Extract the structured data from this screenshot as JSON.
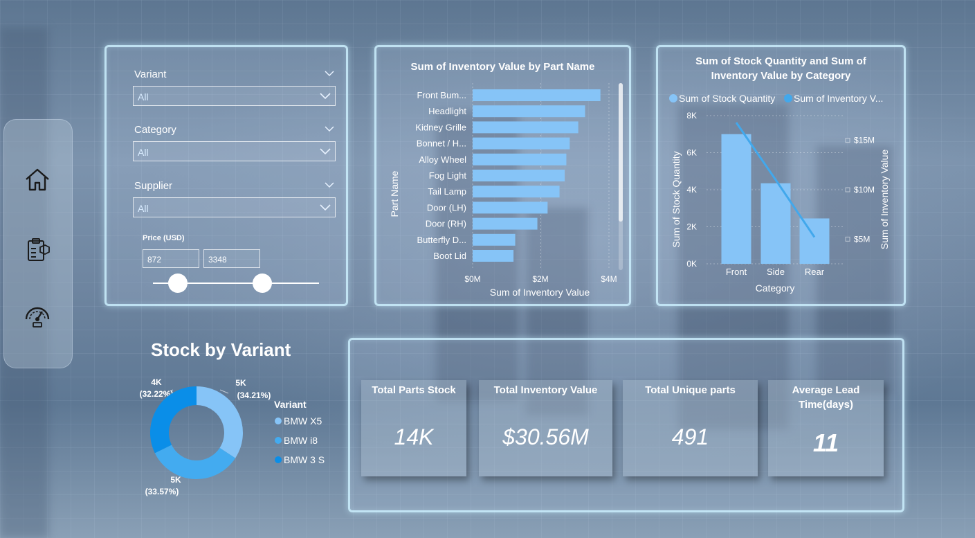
{
  "nav": {
    "items": [
      {
        "icon": "home-icon"
      },
      {
        "icon": "inventory-clipboard-icon"
      },
      {
        "icon": "gauge-dashboard-icon"
      }
    ]
  },
  "filters": {
    "variant": {
      "label": "Variant",
      "value": "All"
    },
    "category": {
      "label": "Category",
      "value": "All"
    },
    "supplier": {
      "label": "Supplier",
      "value": "All"
    },
    "price": {
      "label": "Price (USD)",
      "min": "872",
      "max": "3348",
      "min_fraction": 0.15,
      "max_fraction": 0.66
    }
  },
  "bar_chart": {
    "title": "Sum of Inventory Value by Part Name",
    "xlabel": "Sum of Inventory Value",
    "ylabel": "Part Name",
    "ticks": [
      "$0M",
      "$2M",
      "$4M"
    ]
  },
  "combo_chart": {
    "title_line1": "Sum of Stock Quantity and Sum of",
    "title_line2": "Inventory Value by Category",
    "legend": [
      "Sum of Stock Quantity",
      "Sum of Inventory V..."
    ],
    "xlabel": "Category",
    "ylabel_left": "Sum of Stock Quantity",
    "ylabel_right": "Sum of Inventory Value",
    "left_ticks": [
      "0K",
      "2K",
      "4K",
      "6K",
      "8K"
    ],
    "right_ticks": [
      "$5M",
      "$10M",
      "$15M"
    ]
  },
  "donut": {
    "title": "Stock by Variant",
    "legend_title": "Variant",
    "legend": [
      "BMW X5",
      "BMW i8",
      "BMW 3 S..."
    ],
    "labels": [
      {
        "line1": "5K",
        "line2": "(34.21%)"
      },
      {
        "line1": "5K",
        "line2": "(33.57%)"
      },
      {
        "line1": "4K",
        "line2": "(32.22%)"
      }
    ]
  },
  "kpis": [
    {
      "title": "Total Parts Stock",
      "value": "14K"
    },
    {
      "title": "Total Inventory Value",
      "value": "$30.56M"
    },
    {
      "title": "Total Unique parts",
      "value": "491"
    },
    {
      "title_line1": "Average Lead",
      "title_line2": "Time(days)",
      "value": "11"
    }
  ],
  "colors": {
    "bar": "#86c4f7",
    "line": "#42a8ec",
    "donut1": "#86c4f7",
    "donut2": "#43abf0",
    "donut3": "#0a8ee8",
    "border": "#cdf0ff"
  },
  "chart_data": [
    {
      "type": "bar",
      "orientation": "horizontal",
      "title": "Sum of Inventory Value by Part Name",
      "xlabel": "Sum of Inventory Value",
      "ylabel": "Part Name",
      "categories": [
        "Front Bum...",
        "Headlight",
        "Kidney Grille",
        "Bonnet / H...",
        "Alloy Wheel",
        "Fog Light",
        "Tail Lamp",
        "Door (LH)",
        "Door (RH)",
        "Butterfly D...",
        "Boot Lid"
      ],
      "values": [
        3.75,
        3.3,
        3.1,
        2.85,
        2.75,
        2.7,
        2.55,
        2.2,
        1.9,
        1.25,
        1.2
      ],
      "xlim": [
        0,
        4
      ]
    },
    {
      "type": "bar",
      "title": "Sum of Stock Quantity and Sum of Inventory Value by Category",
      "xlabel": "Category",
      "categories": [
        "Front",
        "Side",
        "Rear"
      ],
      "series": [
        {
          "name": "Sum of Stock Quantity",
          "type": "bar",
          "axis": "left",
          "values": [
            7000,
            4350,
            2450
          ]
        },
        {
          "name": "Sum of Inventory V...",
          "type": "line",
          "axis": "right",
          "values": [
            16.8,
            11.0,
            5.2
          ]
        }
      ],
      "ylim_left": [
        0,
        8000
      ],
      "ylim_right": [
        2.5,
        17.5
      ]
    },
    {
      "type": "pie",
      "title": "Stock by Variant",
      "categories": [
        "BMW X5",
        "BMW i8",
        "BMW 3 S..."
      ],
      "values": [
        34.21,
        33.57,
        32.22
      ],
      "labels": [
        "5K (34.21%)",
        "5K (33.57%)",
        "4K (32.22%)"
      ]
    }
  ]
}
